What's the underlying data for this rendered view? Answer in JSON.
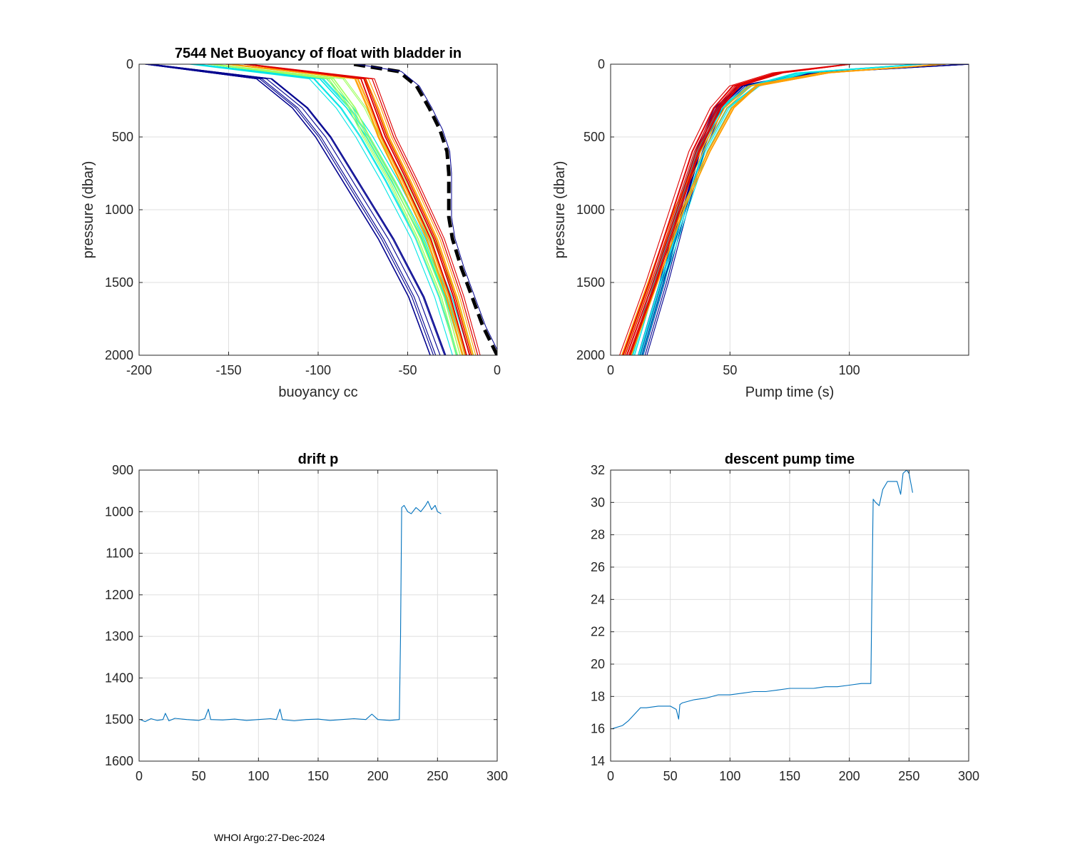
{
  "footer": "WHOI Argo:27-Dec-2024",
  "chart_data": [
    {
      "id": "buoyancy",
      "type": "line",
      "title": "7544 Net Buoyancy of float with bladder in",
      "xlabel": "buoyancy cc",
      "ylabel": "pressure (dbar)",
      "xlim": [
        -200,
        0
      ],
      "ylim": [
        0,
        2000
      ],
      "y_reversed": true,
      "xticks": [
        -200,
        -150,
        -100,
        -50,
        0
      ],
      "yticks": [
        0,
        500,
        1000,
        1500,
        2000
      ],
      "grid": true,
      "series": [
        {
          "name": "profile group (dark blue)",
          "color": "#00008f",
          "pressure": [
            0,
            100,
            300,
            500,
            800,
            1200,
            1600,
            2000
          ],
          "values": [
            -195,
            -130,
            -110,
            -97,
            -82,
            -62,
            -45,
            -33
          ]
        },
        {
          "name": "profile group (cyan)",
          "color": "#00e5e5",
          "pressure": [
            0,
            100,
            300,
            500,
            800,
            1200,
            1600,
            2000
          ],
          "values": [
            -170,
            -100,
            -85,
            -74,
            -60,
            -43,
            -30,
            -20
          ]
        },
        {
          "name": "profile group (green-yellow)",
          "color": "#9fff5f",
          "pressure": [
            0,
            100,
            300,
            500,
            800,
            1200,
            1600,
            2000
          ],
          "values": [
            -160,
            -90,
            -78,
            -70,
            -56,
            -40,
            -27,
            -18
          ]
        },
        {
          "name": "profile group (orange)",
          "color": "#ff9f00",
          "pressure": [
            0,
            100,
            300,
            500,
            800,
            1200,
            1600,
            2000
          ],
          "values": [
            -150,
            -75,
            -68,
            -62,
            -50,
            -35,
            -24,
            -15
          ]
        },
        {
          "name": "profile group (red)",
          "color": "#df0000",
          "pressure": [
            0,
            100,
            300,
            500,
            800,
            1200,
            1600,
            2000
          ],
          "values": [
            -140,
            -72,
            -66,
            -60,
            -48,
            -33,
            -22,
            -13
          ]
        },
        {
          "name": "bladder-in reference",
          "color": "#000000",
          "dashed": true,
          "pressure": [
            0,
            50,
            150,
            300,
            450,
            600,
            750,
            900,
            1050,
            1200,
            1400,
            1600,
            1800,
            2000
          ],
          "values": [
            -80,
            -55,
            -45,
            -38,
            -32,
            -28,
            -27,
            -27,
            -27,
            -25,
            -20,
            -14,
            -8,
            0
          ]
        }
      ]
    },
    {
      "id": "pumptime",
      "type": "line",
      "title": "",
      "xlabel": "Pump time (s)",
      "ylabel": "pressure (dbar)",
      "xlim": [
        0,
        150
      ],
      "ylim": [
        0,
        2000
      ],
      "y_reversed": true,
      "xticks": [
        0,
        50,
        100
      ],
      "yticks": [
        0,
        500,
        1000,
        1500,
        2000
      ],
      "grid": true,
      "series": [
        {
          "name": "profile group (dark blue)",
          "color": "#00008f",
          "pressure": [
            0,
            60,
            150,
            300,
            600,
            1000,
            1500,
            2000
          ],
          "values": [
            150,
            85,
            55,
            45,
            37,
            30,
            22,
            13
          ]
        },
        {
          "name": "profile group (cyan)",
          "color": "#00e5e5",
          "pressure": [
            0,
            60,
            150,
            300,
            600,
            1000,
            1500,
            2000
          ],
          "values": [
            130,
            80,
            60,
            48,
            38,
            30,
            20,
            11
          ]
        },
        {
          "name": "profile group (orange)",
          "color": "#ff9f00",
          "pressure": [
            0,
            60,
            150,
            300,
            600,
            1000,
            1500,
            2000
          ],
          "values": [
            140,
            90,
            60,
            50,
            40,
            29,
            18,
            7
          ]
        },
        {
          "name": "profile group (red)",
          "color": "#df0000",
          "pressure": [
            0,
            60,
            150,
            300,
            600,
            1000,
            1500,
            2000
          ],
          "values": [
            100,
            70,
            52,
            44,
            35,
            27,
            17,
            6
          ]
        }
      ]
    },
    {
      "id": "driftp",
      "type": "line",
      "title": "drift p",
      "xlabel": "",
      "ylabel": "",
      "xlim": [
        0,
        300
      ],
      "ylim": [
        900,
        1600
      ],
      "y_reversed": true,
      "xticks": [
        0,
        50,
        100,
        150,
        200,
        250,
        300
      ],
      "yticks": [
        900,
        1000,
        1100,
        1200,
        1300,
        1400,
        1500,
        1600
      ],
      "grid": true,
      "series": [
        {
          "name": "drift pressure",
          "color": "#0072bd",
          "x": [
            1,
            5,
            10,
            15,
            20,
            22,
            25,
            30,
            40,
            50,
            55,
            58,
            60,
            70,
            80,
            90,
            100,
            110,
            115,
            118,
            120,
            130,
            140,
            150,
            160,
            170,
            180,
            190,
            195,
            200,
            210,
            218,
            219,
            220,
            222,
            225,
            228,
            232,
            236,
            240,
            242,
            245,
            248,
            250,
            253
          ],
          "values": [
            1500,
            1505,
            1498,
            1502,
            1500,
            1485,
            1503,
            1497,
            1500,
            1502,
            1498,
            1475,
            1500,
            1501,
            1499,
            1502,
            1500,
            1498,
            1500,
            1475,
            1500,
            1503,
            1500,
            1499,
            1502,
            1500,
            1498,
            1500,
            1487,
            1500,
            1502,
            1500,
            1300,
            990,
            985,
            1000,
            1005,
            990,
            1000,
            985,
            975,
            995,
            985,
            1000,
            1005
          ]
        }
      ]
    },
    {
      "id": "pumpdescent",
      "type": "line",
      "title": "descent pump time",
      "xlabel": "",
      "ylabel": "",
      "xlim": [
        0,
        300
      ],
      "ylim": [
        14,
        32
      ],
      "y_reversed": false,
      "xticks": [
        0,
        50,
        100,
        150,
        200,
        250,
        300
      ],
      "yticks": [
        14,
        16,
        18,
        20,
        22,
        24,
        26,
        28,
        30,
        32
      ],
      "grid": true,
      "series": [
        {
          "name": "descent pump time",
          "color": "#0072bd",
          "x": [
            1,
            10,
            15,
            20,
            25,
            30,
            40,
            50,
            55,
            57,
            58,
            60,
            70,
            80,
            90,
            100,
            110,
            120,
            130,
            140,
            150,
            160,
            170,
            180,
            190,
            200,
            210,
            218,
            219,
            220,
            222,
            225,
            228,
            232,
            236,
            240,
            243,
            245,
            248,
            250,
            253
          ],
          "values": [
            16.0,
            16.2,
            16.5,
            16.9,
            17.3,
            17.3,
            17.4,
            17.4,
            17.2,
            16.6,
            17.5,
            17.6,
            17.8,
            17.9,
            18.1,
            18.1,
            18.2,
            18.3,
            18.3,
            18.4,
            18.5,
            18.5,
            18.5,
            18.6,
            18.6,
            18.7,
            18.8,
            18.8,
            25.0,
            30.2,
            30.0,
            29.8,
            30.8,
            31.3,
            31.3,
            31.3,
            30.5,
            31.8,
            32.0,
            31.8,
            30.6
          ]
        }
      ]
    }
  ]
}
